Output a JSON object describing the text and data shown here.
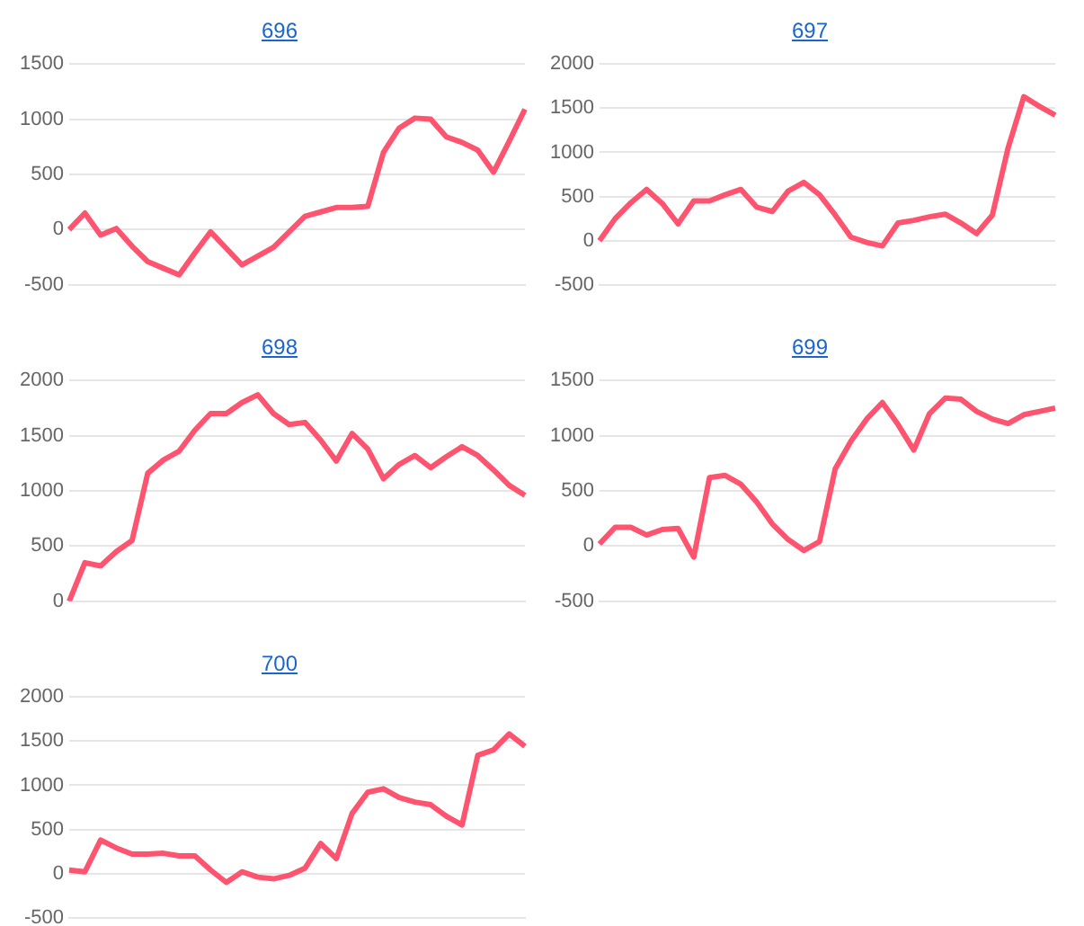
{
  "chart_data": [
    {
      "type": "line",
      "title": "696",
      "categories": [
        null,
        null,
        null,
        null,
        null,
        null,
        null,
        null,
        null,
        null,
        null,
        null,
        null,
        null,
        null,
        null,
        null,
        null,
        null,
        null,
        null,
        null,
        null,
        null,
        null,
        null,
        null,
        null,
        null,
        null
      ],
      "series": [
        {
          "color": "#ff5470",
          "values": [
            0,
            150,
            -50,
            10,
            -150,
            -290,
            -350,
            -410,
            -210,
            -20,
            -170,
            -320,
            -240,
            -160,
            -20,
            120,
            160,
            200,
            200,
            210,
            700,
            920,
            1010,
            1000,
            840,
            790,
            720,
            520,
            800,
            1090
          ]
        }
      ],
      "ylim": [
        -500,
        1500
      ],
      "yticks": [
        -500,
        0,
        500,
        1000,
        1500
      ],
      "grid": "y",
      "tick_labels": "y",
      "legend": false,
      "marker": "none"
    },
    {
      "type": "line",
      "title": "697",
      "categories": [
        null,
        null,
        null,
        null,
        null,
        null,
        null,
        null,
        null,
        null,
        null,
        null,
        null,
        null,
        null,
        null,
        null,
        null,
        null,
        null,
        null,
        null,
        null,
        null,
        null,
        null,
        null,
        null,
        null,
        null
      ],
      "series": [
        {
          "color": "#ff5470",
          "values": [
            0,
            250,
            430,
            580,
            420,
            190,
            450,
            450,
            520,
            580,
            380,
            330,
            560,
            660,
            520,
            290,
            40,
            -20,
            -60,
            200,
            230,
            270,
            300,
            200,
            80,
            290,
            1050,
            1630,
            1520,
            1420
          ]
        }
      ],
      "ylim": [
        -500,
        2000
      ],
      "yticks": [
        -500,
        0,
        500,
        1000,
        1500,
        2000
      ],
      "grid": "y",
      "tick_labels": "y",
      "legend": false,
      "marker": "none"
    },
    {
      "type": "line",
      "title": "698",
      "categories": [
        null,
        null,
        null,
        null,
        null,
        null,
        null,
        null,
        null,
        null,
        null,
        null,
        null,
        null,
        null,
        null,
        null,
        null,
        null,
        null,
        null,
        null,
        null,
        null,
        null,
        null,
        null,
        null,
        null,
        null
      ],
      "series": [
        {
          "color": "#ff5470",
          "values": [
            0,
            350,
            320,
            450,
            550,
            1160,
            1280,
            1360,
            1550,
            1700,
            1700,
            1800,
            1870,
            1700,
            1600,
            1620,
            1460,
            1270,
            1520,
            1380,
            1110,
            1240,
            1320,
            1210,
            1310,
            1400,
            1320,
            1190,
            1050,
            960
          ]
        }
      ],
      "ylim": [
        0,
        2000
      ],
      "yticks": [
        0,
        500,
        1000,
        1500,
        2000
      ],
      "grid": "y",
      "tick_labels": "y",
      "legend": false,
      "marker": "none"
    },
    {
      "type": "line",
      "title": "699",
      "categories": [
        null,
        null,
        null,
        null,
        null,
        null,
        null,
        null,
        null,
        null,
        null,
        null,
        null,
        null,
        null,
        null,
        null,
        null,
        null,
        null,
        null,
        null,
        null,
        null,
        null,
        null,
        null,
        null,
        null,
        null
      ],
      "series": [
        {
          "color": "#ff5470",
          "values": [
            20,
            170,
            170,
            100,
            150,
            160,
            -100,
            620,
            640,
            560,
            400,
            200,
            60,
            -40,
            40,
            700,
            950,
            1150,
            1300,
            1100,
            870,
            1200,
            1340,
            1330,
            1220,
            1150,
            1110,
            1190,
            1220,
            1250
          ]
        }
      ],
      "ylim": [
        -500,
        1500
      ],
      "yticks": [
        -500,
        0,
        500,
        1000,
        1500
      ],
      "grid": "y",
      "tick_labels": "y",
      "legend": false,
      "marker": "none"
    },
    {
      "type": "line",
      "title": "700",
      "categories": [
        null,
        null,
        null,
        null,
        null,
        null,
        null,
        null,
        null,
        null,
        null,
        null,
        null,
        null,
        null,
        null,
        null,
        null,
        null,
        null,
        null,
        null,
        null,
        null,
        null,
        null,
        null,
        null,
        null,
        null
      ],
      "series": [
        {
          "color": "#ff5470",
          "values": [
            40,
            20,
            380,
            290,
            220,
            220,
            230,
            200,
            200,
            40,
            -100,
            20,
            -40,
            -60,
            -20,
            60,
            340,
            170,
            680,
            920,
            960,
            860,
            810,
            780,
            650,
            550,
            1340,
            1400,
            1580,
            1440
          ]
        }
      ],
      "ylim": [
        -500,
        2000
      ],
      "yticks": [
        -500,
        0,
        500,
        1000,
        1500,
        2000
      ],
      "grid": "y",
      "tick_labels": "y",
      "legend": false,
      "marker": "none"
    }
  ]
}
